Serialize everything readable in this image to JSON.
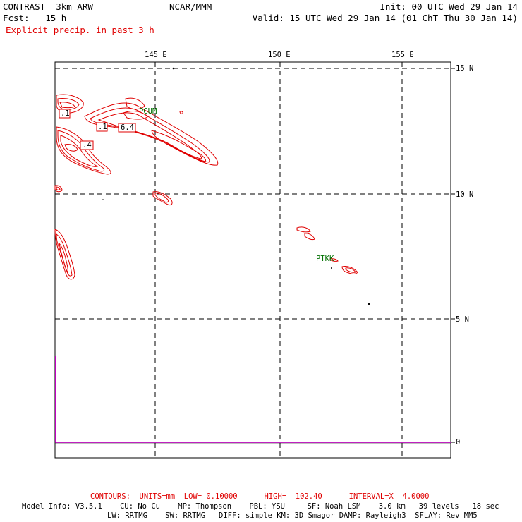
{
  "header": {
    "model_title": "CONTRAST  3km ARW",
    "forecast": "Fcst:   15 h",
    "center": "NCAR/MMM",
    "init": "Init: 00 UTC Wed 29 Jan 14",
    "valid": "Valid: 15 UTC Wed 29 Jan 14 (01 ChT Thu 30 Jan 14)",
    "field_title": "Explicit precip. in past 3 h"
  },
  "map": {
    "lon_labels": [
      "145 E",
      "150 E",
      "155 E"
    ],
    "lat_labels": [
      "15 N",
      "10 N",
      "5 N",
      "0"
    ],
    "stations": [
      "PGUM",
      "PTKK"
    ],
    "contour_labels": [
      ".1",
      ".1",
      "6.4",
      ".4"
    ]
  },
  "footer": {
    "contours": "CONTOURS:  UNITS=mm  LOW= 0.10000      HIGH=  102.40      INTERVAL=X  4.0000",
    "model_info_1": "Model Info: V3.5.1    CU: No Cu    MP: Thompson    PBL: YSU     SF: Noah LSM    3.0 km   39 levels   18 sec",
    "model_info_2": "LW: RRTMG    SW: RRTMG   DIFF: simple KM: 3D Smagor DAMP: Rayleigh3  SFLAY: Rev MM5"
  },
  "colors": {
    "contour": "#e00000",
    "station": "#007000",
    "graph_line": "#ff00ff",
    "gridline": "#000000"
  }
}
